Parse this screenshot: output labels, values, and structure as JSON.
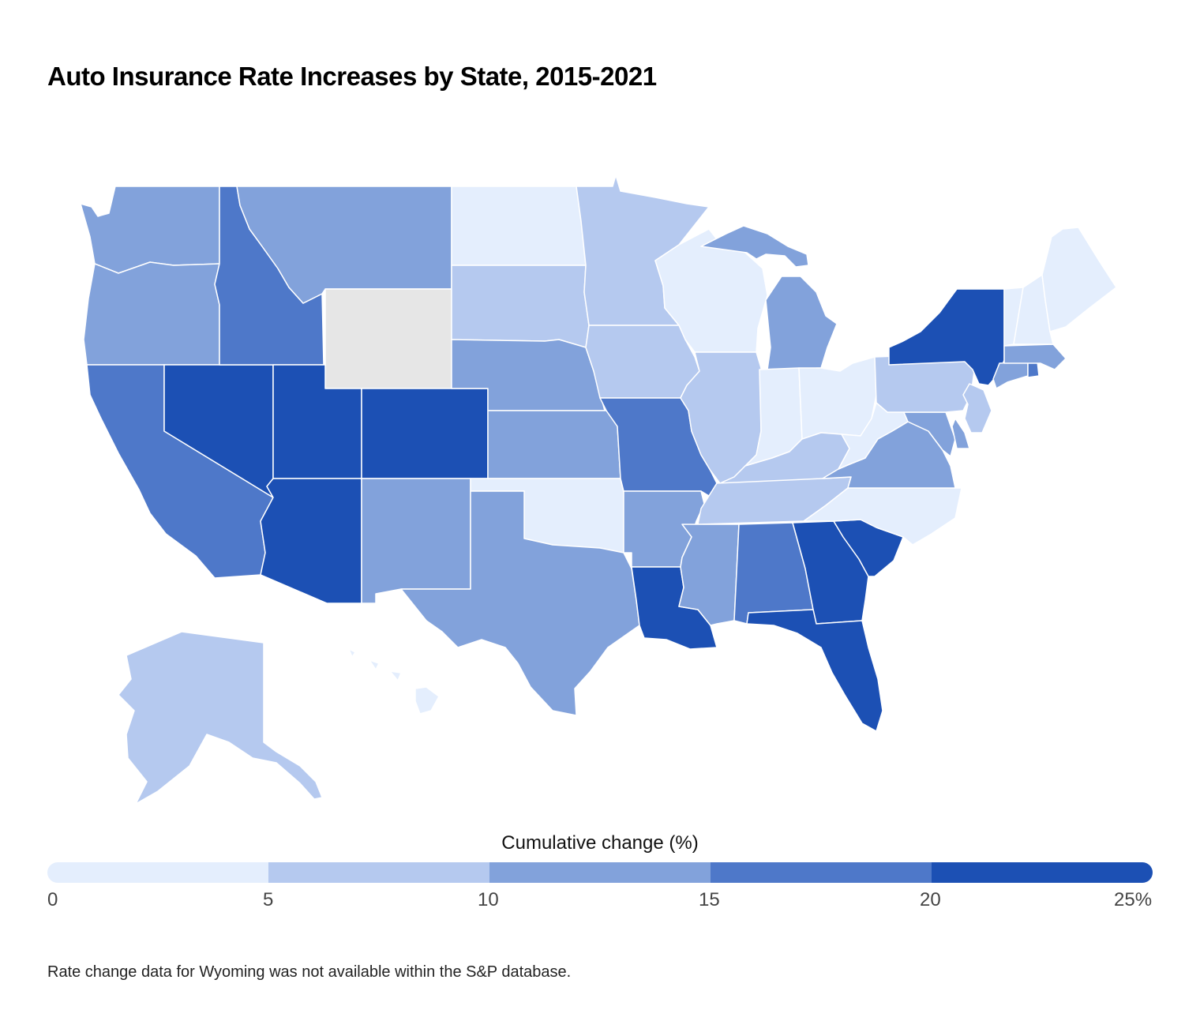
{
  "title": "Auto Insurance Rate Increases by State, 2015-2021",
  "legend": {
    "title": "Cumulative change (%)",
    "ticks": [
      "0",
      "5",
      "10",
      "15",
      "20",
      "25%"
    ],
    "colors": [
      "#e4eefd",
      "#b5c9ef",
      "#82a2db",
      "#4e78c9",
      "#1c50b4"
    ]
  },
  "no_data_color": "#e6e6e6",
  "footnote": "Rate change data for Wyoming was not available within the S&P database.",
  "chart_data": {
    "type": "choropleth",
    "title": "Auto Insurance Rate Increases by State, 2015-2021",
    "legend_title": "Cumulative change (%)",
    "bins": [
      [
        0,
        5
      ],
      [
        5,
        10
      ],
      [
        10,
        15
      ],
      [
        15,
        20
      ],
      [
        20,
        25
      ]
    ],
    "unit": "%",
    "states": [
      {
        "state": "Washington",
        "bin": 2
      },
      {
        "state": "Oregon",
        "bin": 2
      },
      {
        "state": "California",
        "bin": 3
      },
      {
        "state": "Nevada",
        "bin": 4
      },
      {
        "state": "Idaho",
        "bin": 3
      },
      {
        "state": "Montana",
        "bin": 2
      },
      {
        "state": "Wyoming",
        "bin": null
      },
      {
        "state": "Utah",
        "bin": 4
      },
      {
        "state": "Arizona",
        "bin": 4
      },
      {
        "state": "Colorado",
        "bin": 4
      },
      {
        "state": "New Mexico",
        "bin": 2
      },
      {
        "state": "North Dakota",
        "bin": 0
      },
      {
        "state": "South Dakota",
        "bin": 1
      },
      {
        "state": "Nebraska",
        "bin": 2
      },
      {
        "state": "Kansas",
        "bin": 2
      },
      {
        "state": "Oklahoma",
        "bin": 0
      },
      {
        "state": "Texas",
        "bin": 2
      },
      {
        "state": "Minnesota",
        "bin": 1
      },
      {
        "state": "Iowa",
        "bin": 1
      },
      {
        "state": "Missouri",
        "bin": 3
      },
      {
        "state": "Arkansas",
        "bin": 2
      },
      {
        "state": "Louisiana",
        "bin": 4
      },
      {
        "state": "Wisconsin",
        "bin": 0
      },
      {
        "state": "Illinois",
        "bin": 1
      },
      {
        "state": "Michigan",
        "bin": 2
      },
      {
        "state": "Indiana",
        "bin": 0
      },
      {
        "state": "Ohio",
        "bin": 0
      },
      {
        "state": "Kentucky",
        "bin": 1
      },
      {
        "state": "Tennessee",
        "bin": 1
      },
      {
        "state": "Mississippi",
        "bin": 2
      },
      {
        "state": "Alabama",
        "bin": 3
      },
      {
        "state": "Georgia",
        "bin": 4
      },
      {
        "state": "Florida",
        "bin": 4
      },
      {
        "state": "South Carolina",
        "bin": 4
      },
      {
        "state": "North Carolina",
        "bin": 0
      },
      {
        "state": "Virginia",
        "bin": 2
      },
      {
        "state": "West Virginia",
        "bin": 0
      },
      {
        "state": "Maryland",
        "bin": 2
      },
      {
        "state": "Delaware",
        "bin": 2
      },
      {
        "state": "Pennsylvania",
        "bin": 1
      },
      {
        "state": "New Jersey",
        "bin": 1
      },
      {
        "state": "New York",
        "bin": 4
      },
      {
        "state": "Connecticut",
        "bin": 2
      },
      {
        "state": "Rhode Island",
        "bin": 3
      },
      {
        "state": "Massachusetts",
        "bin": 2
      },
      {
        "state": "Vermont",
        "bin": 0
      },
      {
        "state": "New Hampshire",
        "bin": 0
      },
      {
        "state": "Maine",
        "bin": 0
      },
      {
        "state": "Alaska",
        "bin": 1
      },
      {
        "state": "Hawaii",
        "bin": 0
      }
    ]
  }
}
